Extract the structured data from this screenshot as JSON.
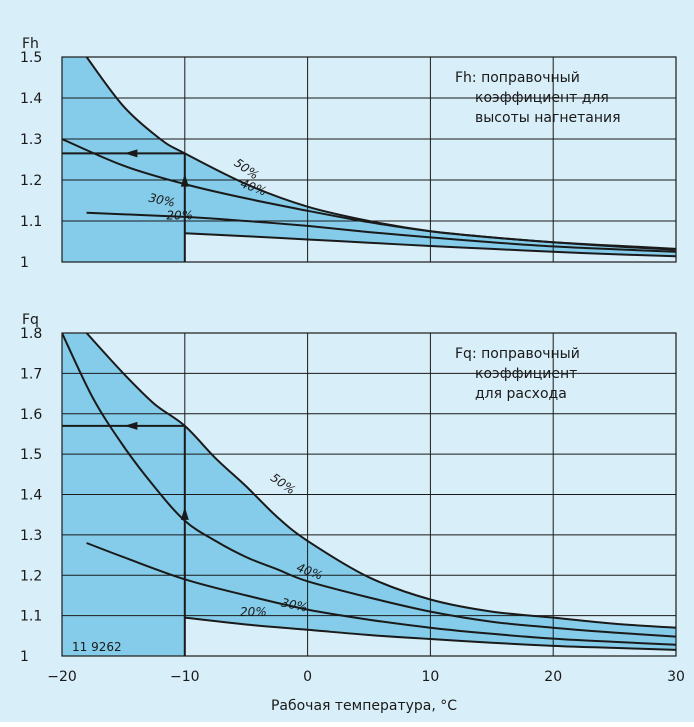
{
  "chart_data": [
    {
      "type": "line",
      "ylabel": "Fh",
      "xlim": [
        -20,
        30
      ],
      "ylim": [
        1,
        1.5
      ],
      "y_ticks": [
        "1.5",
        "1.4",
        "1.3",
        "1.2",
        "1.1",
        "1"
      ],
      "annotation": [
        "Fh: поправочный",
        "коэффициент для",
        "высоты нагнетания"
      ],
      "grid": true,
      "shaded_band_between": [
        "50%",
        "20%"
      ],
      "series": [
        {
          "name": "50%",
          "x": [
            -18,
            -15,
            -12,
            -10,
            -5,
            0,
            5,
            10,
            15,
            20,
            25,
            30
          ],
          "y": [
            1.5,
            1.38,
            1.3,
            1.265,
            1.19,
            1.135,
            1.1,
            1.075,
            1.06,
            1.048,
            1.04,
            1.032
          ]
        },
        {
          "name": "40%",
          "x": [
            -20,
            -15,
            -10,
            -5,
            0,
            5,
            10,
            15,
            20,
            25,
            30
          ],
          "y": [
            1.3,
            1.235,
            1.19,
            1.155,
            1.125,
            1.097,
            1.075,
            1.06,
            1.048,
            1.038,
            1.03
          ]
        },
        {
          "name": "30%",
          "x": [
            -18,
            -10,
            -5,
            0,
            5,
            10,
            15,
            20,
            25,
            30
          ],
          "y": [
            1.12,
            1.11,
            1.1,
            1.088,
            1.073,
            1.06,
            1.048,
            1.038,
            1.031,
            1.025
          ]
        },
        {
          "name": "20%",
          "x": [
            -10,
            -5,
            0,
            5,
            10,
            15,
            20,
            25,
            30
          ],
          "y": [
            1.07,
            1.063,
            1.055,
            1.047,
            1.039,
            1.032,
            1.025,
            1.019,
            1.014
          ]
        }
      ],
      "example": {
        "x": -10,
        "y": 1.265
      }
    },
    {
      "type": "line",
      "ylabel": "Fq",
      "xlabel": "Рабочая температура, °С",
      "xlim": [
        -20,
        30
      ],
      "ylim": [
        1,
        1.8
      ],
      "x_ticks": [
        "−20",
        "−10",
        "0",
        "10",
        "20",
        "30"
      ],
      "y_ticks": [
        "1.8",
        "1.7",
        "1.6",
        "1.5",
        "1.4",
        "1.3",
        "1.2",
        "1.1",
        "1"
      ],
      "annotation": [
        "Fq: поправочный",
        "коэффициент",
        "для расхода"
      ],
      "grid": true,
      "shaded_band_between": [
        "50%",
        "20%"
      ],
      "series": [
        {
          "name": "50%",
          "x": [
            -18,
            -15,
            -12.5,
            -10,
            -7.5,
            -5,
            -2.5,
            0,
            5,
            10,
            15,
            20,
            25,
            30
          ],
          "y": [
            1.8,
            1.7,
            1.625,
            1.57,
            1.49,
            1.42,
            1.345,
            1.285,
            1.195,
            1.14,
            1.11,
            1.095,
            1.08,
            1.07
          ]
        },
        {
          "name": "40%",
          "x": [
            -20,
            -17.5,
            -15,
            -12.5,
            -10,
            -7.5,
            -5,
            -2.5,
            0,
            5,
            10,
            15,
            20,
            25,
            30
          ],
          "y": [
            1.8,
            1.64,
            1.52,
            1.42,
            1.335,
            1.285,
            1.245,
            1.215,
            1.185,
            1.145,
            1.11,
            1.085,
            1.07,
            1.058,
            1.048
          ]
        },
        {
          "name": "30%",
          "x": [
            -18,
            -15,
            -10,
            -5,
            0,
            5,
            10,
            15,
            20,
            25,
            30
          ],
          "y": [
            1.28,
            1.245,
            1.19,
            1.15,
            1.115,
            1.09,
            1.07,
            1.055,
            1.043,
            1.035,
            1.028
          ]
        },
        {
          "name": "20%",
          "x": [
            -10,
            -5,
            0,
            5,
            10,
            15,
            20,
            25,
            30
          ],
          "y": [
            1.095,
            1.078,
            1.065,
            1.052,
            1.042,
            1.033,
            1.025,
            1.02,
            1.015
          ]
        }
      ],
      "example": {
        "x": -10,
        "y": 1.57
      },
      "doc_code": "11 9262"
    }
  ],
  "colors": {
    "background": "#d8eef8",
    "band": "#84cce9",
    "ink": "#1a1a1a"
  }
}
